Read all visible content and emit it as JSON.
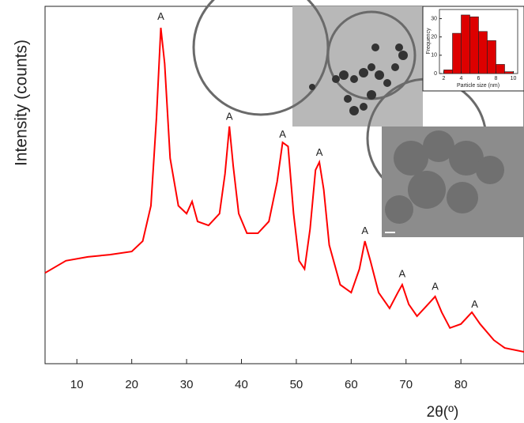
{
  "chart_data": [
    {
      "type": "line",
      "y_label": "Intensity (counts)",
      "x_label": "2θ(º)",
      "xlim": [
        4.2,
        91.5
      ],
      "xticks": [
        10,
        20,
        30,
        40,
        50,
        60,
        70,
        80
      ],
      "ylim": [
        0,
        100
      ],
      "series": [
        {
          "color": "#ff0000",
          "x": [
            4.2,
            8,
            12,
            16,
            20,
            22,
            23.5,
            24.5,
            25.3,
            26,
            27,
            28.5,
            30,
            31,
            32,
            34,
            36,
            37,
            37.8,
            38.5,
            39.5,
            41,
            43,
            45,
            46.5,
            47.5,
            48.5,
            49.5,
            50.5,
            51.5,
            52.5,
            53.5,
            54.2,
            55,
            56,
            58,
            60,
            61.5,
            62.5,
            63.5,
            65,
            67,
            68.5,
            69.3,
            70.5,
            72,
            74,
            75.3,
            76.5,
            78,
            80,
            82,
            83.5,
            86,
            88,
            91.5
          ],
          "values": [
            25.4,
            28.8,
            29.9,
            30.5,
            31.4,
            34.3,
            44.2,
            68.6,
            94,
            84,
            57.5,
            44.2,
            42,
            45.4,
            39.8,
            38.7,
            42,
            53.1,
            66.4,
            55.3,
            42,
            36.5,
            36.5,
            39.8,
            50.9,
            61.9,
            60.8,
            42,
            28.8,
            26.5,
            37.6,
            54.2,
            56.4,
            48.7,
            33.2,
            22.1,
            19.9,
            26.5,
            34.3,
            28.8,
            19.9,
            15.5,
            19.9,
            22.1,
            16.6,
            13.3,
            16.6,
            18.8,
            14.4,
            10,
            11.1,
            14.4,
            11.1,
            6.6,
            4.4,
            3.3
          ]
        }
      ],
      "annotations": [
        {
          "text": "A",
          "x": 25.3,
          "y": 97
        },
        {
          "text": "A",
          "x": 37.8,
          "y": 69
        },
        {
          "text": "A",
          "x": 47.5,
          "y": 64
        },
        {
          "text": "A",
          "x": 54.2,
          "y": 59
        },
        {
          "text": "A",
          "x": 62.5,
          "y": 37
        },
        {
          "text": "A",
          "x": 69.3,
          "y": 25
        },
        {
          "text": "A",
          "x": 75.3,
          "y": 21.5
        },
        {
          "text": "A",
          "x": 82.5,
          "y": 16.5
        }
      ]
    },
    {
      "type": "histogram",
      "x_label": "Particle size (nm)",
      "y_label": "Frequency",
      "bins": [
        2,
        3,
        4,
        5,
        6,
        7,
        8,
        9,
        10
      ],
      "values": [
        2,
        22,
        32,
        31,
        23,
        18,
        5,
        1
      ],
      "color": "#dd0000",
      "xlim": [
        1.5,
        10.5
      ],
      "xticks": [
        2,
        4,
        6,
        8,
        10
      ],
      "ylim": [
        0,
        35
      ],
      "yticks": [
        0,
        10,
        20,
        30
      ]
    }
  ]
}
